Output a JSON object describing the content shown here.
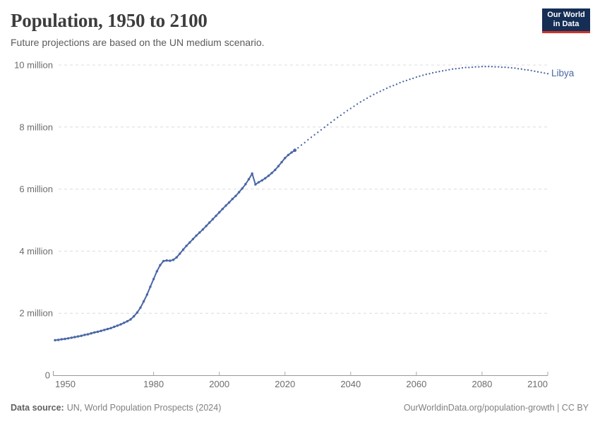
{
  "header": {
    "title": "Population, 1950 to 2100",
    "subtitle": "Future projections are based on the UN medium scenario."
  },
  "logo": {
    "line1": "Our World",
    "line2": "in Data"
  },
  "footer": {
    "source_label": "Data source:",
    "source_text": "UN, World Population Prospects (2024)",
    "right_text": "OurWorldinData.org/population-growth | CC BY"
  },
  "colors": {
    "series": "#4a67a5",
    "gridline": "#dcdcdc",
    "axis": "#999999",
    "tick": "#aaaaaa",
    "tick_label": "#6d6d6d",
    "logo_bg": "#152e56",
    "logo_accent": "#d13328"
  },
  "chart_data": {
    "type": "line",
    "title": "Population, 1950 to 2100",
    "entity": "Libya",
    "unit": "people",
    "xlabel": "",
    "ylabel": "",
    "x_range": [
      1950,
      2100
    ],
    "x_ticks": [
      1950,
      1980,
      2000,
      2020,
      2040,
      2060,
      2080,
      2100
    ],
    "ylim_millions": [
      0,
      10
    ],
    "y_ticks": [
      {
        "value_millions": 0,
        "label": "0"
      },
      {
        "value_millions": 2,
        "label": "2 million"
      },
      {
        "value_millions": 4,
        "label": "4 million"
      },
      {
        "value_millions": 6,
        "label": "6 million"
      },
      {
        "value_millions": 8,
        "label": "8 million"
      },
      {
        "value_millions": 10,
        "label": "10 million"
      }
    ],
    "grid": true,
    "legend_position": "end-of-line",
    "projection_style": "dotted",
    "series": [
      {
        "name": "Libya",
        "color": "#4a67a5",
        "start_year": 1950,
        "observed_millions": [
          1.13,
          1.14,
          1.16,
          1.17,
          1.19,
          1.21,
          1.23,
          1.25,
          1.27,
          1.3,
          1.32,
          1.35,
          1.38,
          1.4,
          1.43,
          1.46,
          1.49,
          1.52,
          1.56,
          1.6,
          1.64,
          1.69,
          1.74,
          1.8,
          1.9,
          2.02,
          2.18,
          2.38,
          2.6,
          2.85,
          3.1,
          3.35,
          3.55,
          3.68,
          3.7,
          3.69,
          3.72,
          3.8,
          3.92,
          4.05,
          4.17,
          4.28,
          4.39,
          4.5,
          4.6,
          4.7,
          4.81,
          4.92,
          5.03,
          5.14,
          5.25,
          5.36,
          5.47,
          5.57,
          5.68,
          5.78,
          5.9,
          6.02,
          6.16,
          6.32,
          6.5,
          6.15,
          6.22,
          6.28,
          6.35,
          6.43,
          6.52,
          6.62,
          6.74,
          6.87,
          7.0,
          7.1,
          7.18,
          7.25
        ],
        "projection_start_year": 2024,
        "projection_millions": [
          7.33,
          7.42,
          7.5,
          7.59,
          7.67,
          7.75,
          7.83,
          7.91,
          7.99,
          8.07,
          8.15,
          8.23,
          8.31,
          8.38,
          8.46,
          8.53,
          8.6,
          8.67,
          8.74,
          8.81,
          8.87,
          8.93,
          8.99,
          9.05,
          9.1,
          9.15,
          9.2,
          9.25,
          9.3,
          9.34,
          9.38,
          9.43,
          9.47,
          9.5,
          9.54,
          9.57,
          9.61,
          9.64,
          9.67,
          9.7,
          9.72,
          9.75,
          9.77,
          9.79,
          9.81,
          9.83,
          9.85,
          9.87,
          9.88,
          9.89,
          9.91,
          9.92,
          9.92,
          9.93,
          9.94,
          9.94,
          9.95,
          9.95,
          9.95,
          9.95,
          9.94,
          9.94,
          9.93,
          9.93,
          9.92,
          9.91,
          9.9,
          9.88,
          9.87,
          9.85,
          9.84,
          9.82,
          9.8,
          9.78,
          9.76,
          9.74,
          9.72
        ]
      }
    ]
  }
}
